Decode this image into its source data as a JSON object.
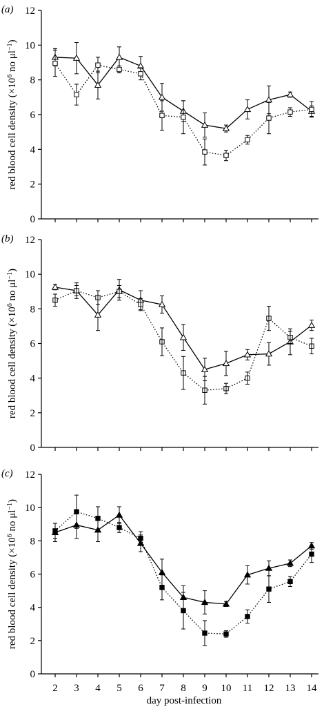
{
  "figure": {
    "x_axis_label": "day post-infection",
    "y_axis_label_main": "red blood cell  density (×10",
    "y_axis_label_exp": "6",
    "y_axis_label_mid": " no μl",
    "y_axis_label_exp2": "−1",
    "y_axis_label_end": ")"
  },
  "chart_data": [
    {
      "type": "line",
      "panel_label": "(a)",
      "xlabel": "",
      "ylabel": "red blood cell density (×10^6 no μl^−1)",
      "x": [
        2,
        3,
        4,
        5,
        6,
        7,
        8,
        9,
        10,
        11,
        12,
        13,
        14
      ],
      "xlim": [
        1.5,
        14.5
      ],
      "ylim": [
        0,
        12
      ],
      "yticks": [
        0,
        2,
        4,
        6,
        8,
        10,
        12
      ],
      "series": [
        {
          "marker": "open-triangle",
          "style": "solid",
          "values": [
            9.3,
            9.25,
            7.7,
            9.3,
            8.8,
            7.0,
            6.2,
            5.4,
            5.2,
            6.3,
            6.85,
            7.15,
            6.2
          ],
          "errors": [
            0.5,
            0.9,
            0.8,
            0.6,
            0.55,
            0.8,
            0.6,
            0.7,
            0.2,
            0.55,
            0.8,
            0.15,
            0.3
          ]
        },
        {
          "marker": "open-square",
          "style": "dotted",
          "values": [
            8.95,
            7.15,
            8.85,
            8.6,
            8.35,
            5.95,
            5.85,
            3.85,
            3.65,
            4.55,
            5.8,
            6.15,
            6.3
          ],
          "errors": [
            0.75,
            0.6,
            0.45,
            0.2,
            0.35,
            0.85,
            0.95,
            0.75,
            0.3,
            0.25,
            0.9,
            0.25,
            0.45
          ]
        }
      ]
    },
    {
      "type": "line",
      "panel_label": "(b)",
      "xlabel": "",
      "ylabel": "red blood cell density (×10^6 no μl^−1)",
      "x": [
        2,
        3,
        4,
        5,
        6,
        7,
        8,
        9,
        10,
        11,
        12,
        13,
        14
      ],
      "xlim": [
        1.5,
        14.5
      ],
      "ylim": [
        0,
        12
      ],
      "yticks": [
        0,
        2,
        4,
        6,
        8,
        10,
        12
      ],
      "series": [
        {
          "marker": "open-triangle",
          "style": "solid",
          "values": [
            9.25,
            9.05,
            7.65,
            9.1,
            8.5,
            8.25,
            6.35,
            4.5,
            4.85,
            5.35,
            5.4,
            6.1,
            7.05
          ],
          "errors": [
            0.15,
            0.45,
            0.9,
            0.6,
            0.55,
            0.5,
            0.75,
            0.65,
            0.7,
            0.3,
            0.65,
            0.75,
            0.3
          ]
        },
        {
          "marker": "open-square",
          "style": "dotted",
          "values": [
            8.5,
            9.05,
            8.65,
            9.0,
            8.25,
            6.1,
            4.3,
            3.3,
            3.4,
            4.0,
            7.45,
            6.35,
            5.85
          ]
        },
        {
          "marker": "none",
          "style": "errors-only",
          "values": [
            8.5,
            9.05,
            8.65,
            9.0,
            8.25,
            6.1,
            4.3,
            3.3,
            3.4,
            4.0,
            7.45,
            6.35,
            5.85
          ],
          "errors": [
            0.35,
            0.3,
            0.4,
            0.35,
            0.35,
            0.8,
            0.95,
            0.8,
            0.3,
            0.35,
            0.7,
            0.35,
            0.45
          ]
        }
      ]
    },
    {
      "type": "line",
      "panel_label": "(c)",
      "xlabel": "day post-infection",
      "ylabel": "red blood cell density (×10^6 no μl^−1)",
      "x": [
        2,
        3,
        4,
        5,
        6,
        7,
        8,
        9,
        10,
        11,
        12,
        13,
        14
      ],
      "xlim": [
        1.5,
        14.5
      ],
      "ylim": [
        0,
        12
      ],
      "yticks": [
        0,
        2,
        4,
        6,
        8,
        10,
        12
      ],
      "xticks": [
        2,
        3,
        4,
        5,
        6,
        7,
        8,
        9,
        10,
        11,
        12,
        13,
        14
      ],
      "series": [
        {
          "marker": "filled-triangle",
          "style": "solid",
          "values": [
            8.5,
            8.95,
            8.65,
            9.55,
            7.85,
            6.1,
            4.6,
            4.3,
            4.2,
            5.95,
            6.35,
            6.65,
            7.7
          ],
          "errors": [
            0.55,
            0.8,
            0.7,
            0.5,
            0.5,
            0.8,
            0.7,
            0.7,
            0.15,
            0.55,
            0.45,
            0.2,
            0.2
          ]
        },
        {
          "marker": "filled-square",
          "style": "dotted",
          "values": [
            8.6,
            9.75,
            9.35,
            8.8,
            8.15,
            5.2,
            3.8,
            2.45,
            2.4,
            3.45,
            5.1,
            5.55,
            7.2
          ],
          "errors": [
            0.45,
            1.0,
            0.7,
            0.3,
            0.4,
            0.75,
            1.1,
            0.75,
            0.2,
            0.4,
            0.8,
            0.3,
            0.5
          ]
        }
      ]
    }
  ]
}
